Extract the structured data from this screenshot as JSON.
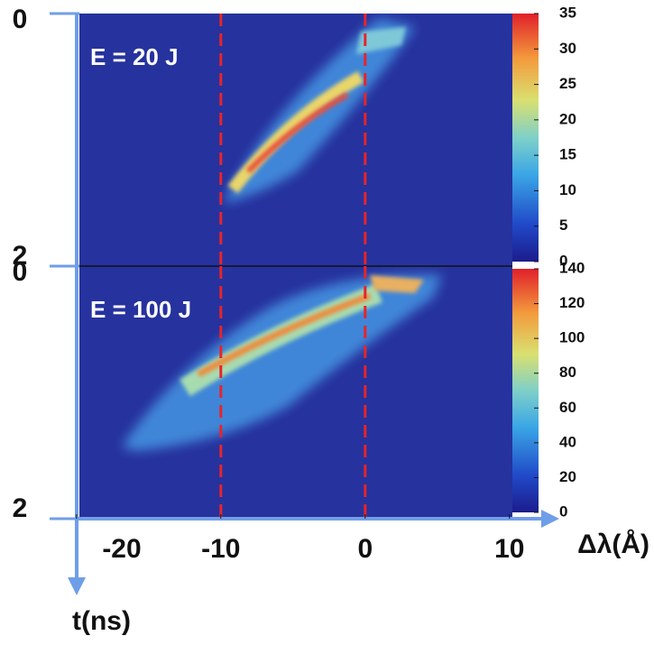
{
  "chart_data": [
    {
      "type": "heatmap",
      "annotation": "E = 20 J",
      "xlim": [
        -19.8,
        10.2
      ],
      "ylim": [
        0,
        2
      ],
      "yticks": [
        0,
        2
      ],
      "clim": [
        0,
        35
      ],
      "cticks": [
        0,
        5,
        10,
        15,
        20,
        25,
        30,
        35
      ],
      "colormap": "jet",
      "vlines": [
        -10,
        0
      ],
      "vline_color": "#e8232a"
    },
    {
      "type": "heatmap",
      "annotation": "E = 100 J",
      "xlim": [
        -19.8,
        10.2
      ],
      "ylim": [
        0,
        2
      ],
      "yticks": [
        0,
        2
      ],
      "clim": [
        0,
        140
      ],
      "cticks": [
        0,
        20,
        40,
        60,
        80,
        100,
        120,
        140
      ],
      "colormap": "jet",
      "vlines": [
        -10,
        0
      ],
      "vline_color": "#e8232a",
      "xticks": [
        -20,
        -10,
        0,
        10
      ],
      "xlabel": "Δλ(Å)",
      "ylabel": "t(ns)"
    }
  ]
}
